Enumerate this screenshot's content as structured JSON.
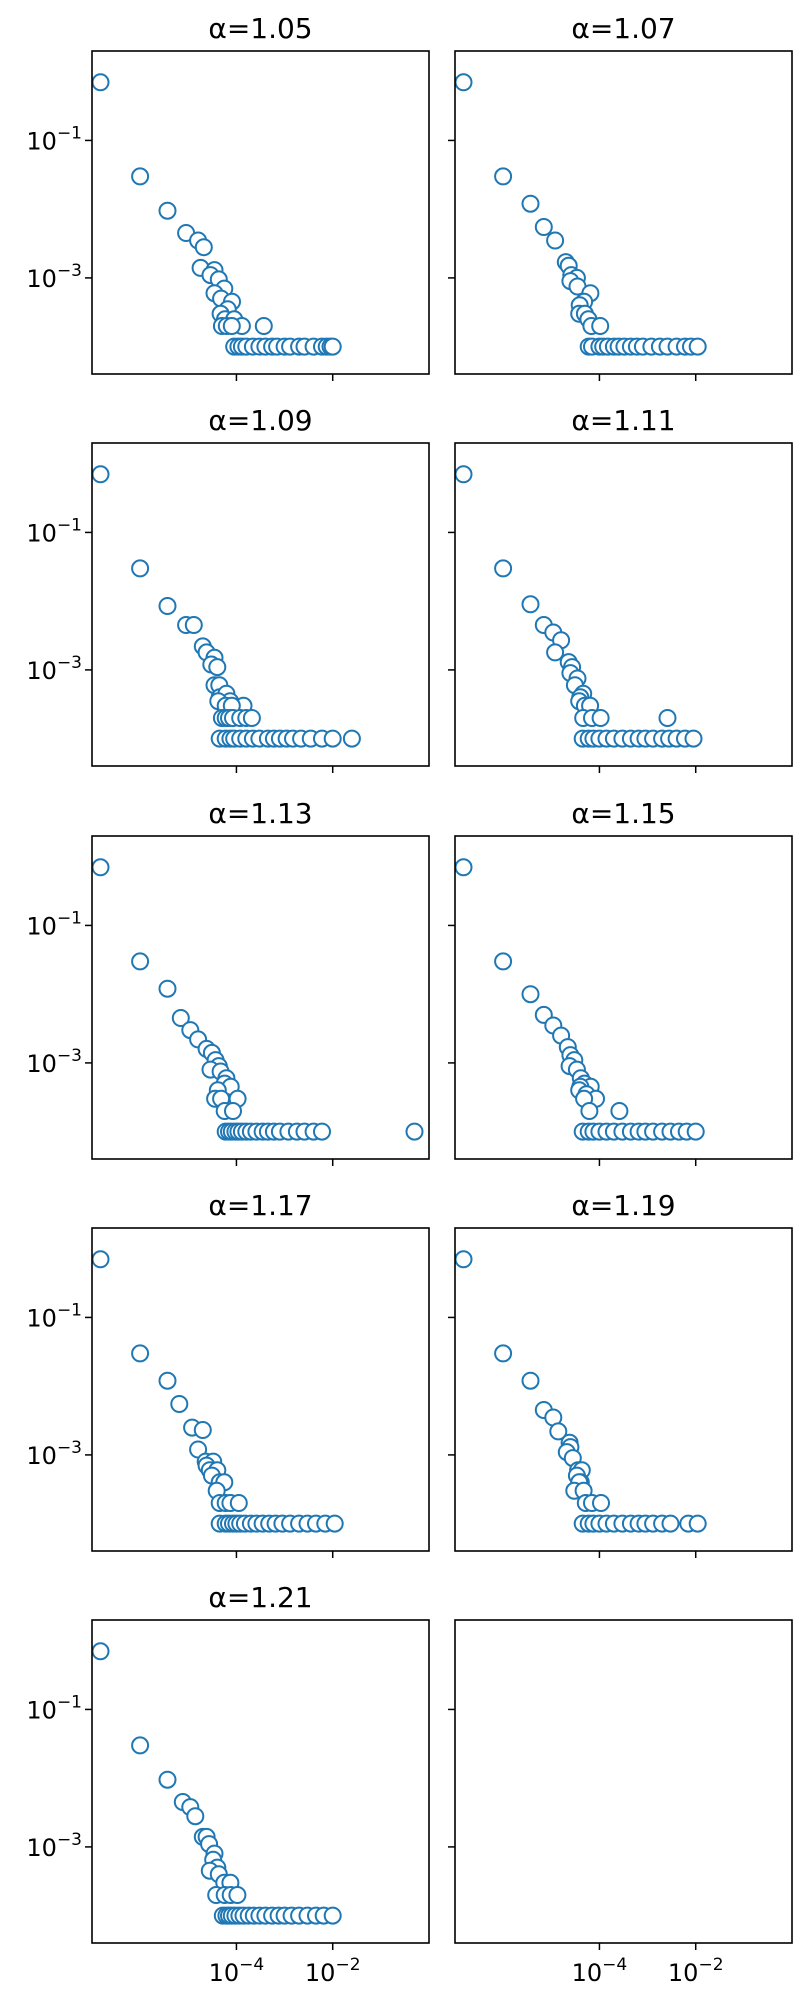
{
  "chart_data": [
    {
      "type": "scatter",
      "title": "α=1.05",
      "x_scale": "log",
      "y_scale": "log",
      "xlim": [
        1e-07,
        1
      ],
      "ylim": [
        4e-05,
        2
      ],
      "x": [
        1.5e-07,
        1e-06,
        3.7e-06,
        9e-06,
        1.6e-05,
        2.1e-05,
        1.8e-05,
        3.5e-05,
        2.9e-05,
        4.3e-05,
        5.6e-05,
        3.5e-05,
        4.8e-05,
        8.1e-05,
        6.6e-05,
        0.00037,
        4.7e-05,
        5.8e-05,
        9e-05,
        0.00013,
        5e-05,
        6.3e-05,
        8e-05,
        9e-05,
        0.00011,
        0.00013,
        0.00016,
        0.00022,
        0.0003,
        0.0004,
        0.00055,
        0.0007,
        0.001,
        0.0013,
        0.002,
        0.0026,
        0.004,
        0.006,
        0.0075,
        0.009,
        0.01
      ],
      "y": [
        0.7,
        0.03,
        0.0095,
        0.0045,
        0.0035,
        0.0028,
        0.0014,
        0.0013,
        0.0011,
        0.00095,
        0.0007,
        0.0006,
        0.0005,
        0.00045,
        0.00035,
        0.0002,
        0.0003,
        0.00025,
        0.00025,
        0.0002,
        0.0002,
        0.0002,
        0.0002,
        0.0001,
        0.0001,
        0.0001,
        0.0001,
        0.0001,
        0.0001,
        0.0001,
        0.0001,
        0.0001,
        0.0001,
        0.0001,
        0.0001,
        0.0001,
        0.0001,
        0.0001,
        0.0001,
        0.0001,
        0.0001
      ]
    },
    {
      "type": "scatter",
      "title": "α=1.07",
      "x_scale": "log",
      "y_scale": "log",
      "xlim": [
        1e-07,
        1
      ],
      "ylim": [
        4e-05,
        2
      ],
      "x": [
        1.5e-07,
        1e-06,
        3.7e-06,
        7e-06,
        1.2e-05,
        2e-05,
        2.3e-05,
        2.6e-05,
        3.4e-05,
        2.5e-05,
        3.5e-05,
        6.5e-05,
        4.8e-05,
        3.9e-05,
        3.8e-05,
        5e-05,
        5.9e-05,
        6.8e-05,
        0.000104,
        6e-05,
        7e-05,
        0.0001,
        0.00012,
        0.00015,
        0.0002,
        0.00025,
        0.00033,
        0.00045,
        0.0006,
        0.0008,
        0.0012,
        0.0018,
        0.0026,
        0.004,
        0.006,
        0.008,
        0.011
      ],
      "y": [
        0.7,
        0.03,
        0.012,
        0.0055,
        0.0035,
        0.0017,
        0.0015,
        0.0011,
        0.001,
        0.0009,
        0.00075,
        0.0006,
        0.00045,
        0.0004,
        0.0003,
        0.0003,
        0.00025,
        0.0002,
        0.0002,
        0.0001,
        0.0001,
        0.0001,
        0.0001,
        0.0001,
        0.0001,
        0.0001,
        0.0001,
        0.0001,
        0.0001,
        0.0001,
        0.0001,
        0.0001,
        0.0001,
        0.0001,
        0.0001,
        0.0001,
        0.0001
      ]
    },
    {
      "type": "scatter",
      "title": "α=1.09",
      "x_scale": "log",
      "y_scale": "log",
      "xlim": [
        1e-07,
        1
      ],
      "ylim": [
        4e-05,
        2
      ],
      "x": [
        1.5e-07,
        1e-06,
        3.7e-06,
        9e-06,
        1.3e-05,
        2e-05,
        2.4e-05,
        3.5e-05,
        3e-05,
        4e-05,
        3.5e-05,
        4.4e-05,
        4.5e-05,
        6.2e-05,
        7.4e-05,
        4.2e-05,
        0.00014,
        6e-05,
        8e-05,
        5e-05,
        6e-05,
        7e-05,
        8.5e-05,
        0.00012,
        0.00016,
        0.00021,
        4.5e-05,
        6e-05,
        7.5e-05,
        9e-05,
        0.00012,
        0.00016,
        0.00022,
        0.0003,
        0.00045,
        0.0006,
        0.0008,
        0.0011,
        0.0015,
        0.0022,
        0.0035,
        0.006,
        0.01,
        0.025
      ],
      "y": [
        0.7,
        0.03,
        0.0085,
        0.0045,
        0.0045,
        0.0022,
        0.0018,
        0.0015,
        0.0012,
        0.0011,
        0.0006,
        0.0006,
        0.0004,
        0.00045,
        0.00035,
        0.00035,
        0.0003,
        0.0003,
        0.0003,
        0.0002,
        0.0002,
        0.0002,
        0.0002,
        0.0002,
        0.0002,
        0.0002,
        0.0001,
        0.0001,
        0.0001,
        0.0001,
        0.0001,
        0.0001,
        0.0001,
        0.0001,
        0.0001,
        0.0001,
        0.0001,
        0.0001,
        0.0001,
        0.0001,
        0.0001,
        0.0001,
        0.0001,
        0.0001
      ]
    },
    {
      "type": "scatter",
      "title": "α=1.11",
      "x_scale": "log",
      "y_scale": "log",
      "xlim": [
        1e-07,
        1
      ],
      "ylim": [
        4e-05,
        2
      ],
      "x": [
        1.5e-07,
        1e-06,
        3.7e-06,
        7e-06,
        1.1e-05,
        1.6e-05,
        1.2e-05,
        2.3e-05,
        2.7e-05,
        2.5e-05,
        3.5e-05,
        3.1e-05,
        4.6e-05,
        4e-05,
        3.8e-05,
        5e-05,
        6.4e-05,
        4.6e-05,
        7e-05,
        0.000106,
        0.0026,
        4.5e-05,
        6e-05,
        7.5e-05,
        0.0001,
        0.00014,
        0.0002,
        0.0003,
        0.00045,
        0.00065,
        0.0009,
        0.0013,
        0.002,
        0.0028,
        0.004,
        0.006,
        0.009
      ],
      "y": [
        0.7,
        0.03,
        0.009,
        0.0045,
        0.0035,
        0.0027,
        0.0018,
        0.0013,
        0.0011,
        0.0009,
        0.00075,
        0.0006,
        0.00045,
        0.0004,
        0.00035,
        0.0003,
        0.0003,
        0.0002,
        0.0002,
        0.0002,
        0.0002,
        0.0001,
        0.0001,
        0.0001,
        0.0001,
        0.0001,
        0.0001,
        0.0001,
        0.0001,
        0.0001,
        0.0001,
        0.0001,
        0.0001,
        0.0001,
        0.0001,
        0.0001,
        0.0001
      ]
    },
    {
      "type": "scatter",
      "title": "α=1.13",
      "x_scale": "log",
      "y_scale": "log",
      "xlim": [
        1e-07,
        1
      ],
      "ylim": [
        4e-05,
        2
      ],
      "x": [
        1.5e-07,
        1e-06,
        3.7e-06,
        7e-06,
        1.1e-05,
        1.6e-05,
        2.4e-05,
        3.1e-05,
        3.7e-05,
        4.3e-05,
        2.9e-05,
        4.7e-05,
        6.2e-05,
        5.7e-05,
        7.6e-05,
        4.1e-05,
        3.6e-05,
        4.8e-05,
        0.000106,
        5.7e-05,
        8.5e-05,
        6e-05,
        7e-05,
        8e-05,
        9.5e-05,
        0.00011,
        0.00013,
        0.00016,
        0.0002,
        0.00026,
        0.00035,
        0.00045,
        0.0006,
        0.0008,
        0.0012,
        0.0018,
        0.0026,
        0.004,
        0.006,
        0.5
      ],
      "y": [
        0.7,
        0.03,
        0.012,
        0.0045,
        0.003,
        0.0022,
        0.0016,
        0.0014,
        0.0011,
        0.0009,
        0.0008,
        0.00075,
        0.0006,
        0.0005,
        0.00045,
        0.0004,
        0.0003,
        0.0003,
        0.0003,
        0.0002,
        0.0002,
        0.0001,
        0.0001,
        0.0001,
        0.0001,
        0.0001,
        0.0001,
        0.0001,
        0.0001,
        0.0001,
        0.0001,
        0.0001,
        0.0001,
        0.0001,
        0.0001,
        0.0001,
        0.0001,
        0.0001,
        0.0001,
        0.0001
      ]
    },
    {
      "type": "scatter",
      "title": "α=1.15",
      "x_scale": "log",
      "y_scale": "log",
      "xlim": [
        1e-07,
        1
      ],
      "ylim": [
        4e-05,
        2
      ],
      "x": [
        1.5e-07,
        1e-06,
        3.7e-06,
        7e-06,
        1.1e-05,
        1.6e-05,
        2.2e-05,
        2.5e-05,
        3e-05,
        2.4e-05,
        3.4e-05,
        4.1e-05,
        4.9e-05,
        6.6e-05,
        4e-05,
        3.8e-05,
        5.4e-05,
        8.5e-05,
        4.8e-05,
        0.00026,
        6.2e-05,
        4.5e-05,
        6e-05,
        7.5e-05,
        0.0001,
        0.00014,
        0.0002,
        0.0003,
        0.00045,
        0.00065,
        0.0009,
        0.0013,
        0.002,
        0.003,
        0.0045,
        0.0065,
        0.01
      ],
      "y": [
        0.7,
        0.03,
        0.01,
        0.005,
        0.0035,
        0.0025,
        0.0017,
        0.0013,
        0.0011,
        0.0009,
        0.0008,
        0.0006,
        0.0005,
        0.00045,
        0.00045,
        0.0004,
        0.00035,
        0.0003,
        0.0003,
        0.0002,
        0.0002,
        0.0001,
        0.0001,
        0.0001,
        0.0001,
        0.0001,
        0.0001,
        0.0001,
        0.0001,
        0.0001,
        0.0001,
        0.0001,
        0.0001,
        0.0001,
        0.0001,
        0.0001,
        0.0001
      ]
    },
    {
      "type": "scatter",
      "title": "α=1.17",
      "x_scale": "log",
      "y_scale": "log",
      "xlim": [
        1e-07,
        1
      ],
      "ylim": [
        4e-05,
        2
      ],
      "x": [
        1.5e-07,
        1e-06,
        3.7e-06,
        6.5e-06,
        1.2e-05,
        2e-05,
        1.6e-05,
        2.3e-05,
        3.3e-05,
        2.4e-05,
        2.8e-05,
        4e-05,
        3.1e-05,
        4.5e-05,
        5.6e-05,
        3.9e-05,
        4.5e-05,
        6e-05,
        7.5e-05,
        0.000112,
        4.5e-05,
        6e-05,
        7e-05,
        8.5e-05,
        0.0001,
        0.00012,
        0.00015,
        0.0002,
        0.00026,
        0.00035,
        0.00048,
        0.00065,
        0.0009,
        0.0013,
        0.002,
        0.003,
        0.0045,
        0.007,
        0.011
      ],
      "y": [
        0.7,
        0.03,
        0.012,
        0.0055,
        0.0025,
        0.0023,
        0.0012,
        0.0008,
        0.0008,
        0.0007,
        0.0006,
        0.0006,
        0.0005,
        0.0004,
        0.0004,
        0.0003,
        0.0002,
        0.0002,
        0.0002,
        0.0002,
        0.0001,
        0.0001,
        0.0001,
        0.0001,
        0.0001,
        0.0001,
        0.0001,
        0.0001,
        0.0001,
        0.0001,
        0.0001,
        0.0001,
        0.0001,
        0.0001,
        0.0001,
        0.0001,
        0.0001,
        0.0001,
        0.0001
      ]
    },
    {
      "type": "scatter",
      "title": "α=1.19",
      "x_scale": "log",
      "y_scale": "log",
      "xlim": [
        1e-07,
        1
      ],
      "ylim": [
        4e-05,
        2
      ],
      "x": [
        1.5e-07,
        1e-06,
        3.7e-06,
        7e-06,
        1.1e-05,
        1.4e-05,
        2.4e-05,
        2.5e-05,
        2.1e-05,
        2.8e-05,
        3.6e-05,
        4.3e-05,
        3.4e-05,
        4.1e-05,
        3.8e-05,
        3e-05,
        4.7e-05,
        5.2e-05,
        7e-05,
        0.000108,
        4.5e-05,
        6e-05,
        7.5e-05,
        0.0001,
        0.00014,
        0.0002,
        0.0003,
        0.00045,
        0.00065,
        0.0009,
        0.0013,
        0.002,
        0.003,
        0.007,
        0.011
      ],
      "y": [
        0.7,
        0.03,
        0.012,
        0.0045,
        0.0035,
        0.0022,
        0.0015,
        0.0013,
        0.0011,
        0.0009,
        0.0006,
        0.0006,
        0.0005,
        0.0004,
        0.0004,
        0.0003,
        0.0003,
        0.0002,
        0.0002,
        0.0002,
        0.0001,
        0.0001,
        0.0001,
        0.0001,
        0.0001,
        0.0001,
        0.0001,
        0.0001,
        0.0001,
        0.0001,
        0.0001,
        0.0001,
        0.0001,
        0.0001,
        0.0001
      ]
    },
    {
      "type": "scatter",
      "title": "α=1.21",
      "x_scale": "log",
      "y_scale": "log",
      "xlim": [
        1e-07,
        1
      ],
      "ylim": [
        4e-05,
        2
      ],
      "x": [
        1.5e-07,
        1e-06,
        3.7e-06,
        7.7e-06,
        1.1e-05,
        1.4e-05,
        2e-05,
        2.4e-05,
        2.7e-05,
        3.5e-05,
        3.3e-05,
        4e-05,
        2.8e-05,
        4.3e-05,
        5.6e-05,
        7.5e-05,
        3.8e-05,
        5.7e-05,
        7.6e-05,
        0.000105,
        5.2e-05,
        6.2e-05,
        7e-05,
        8e-05,
        9.5e-05,
        0.000115,
        0.00014,
        0.00018,
        0.00023,
        0.0003,
        0.0004,
        0.00055,
        0.00075,
        0.001,
        0.0014,
        0.002,
        0.003,
        0.0045,
        0.0065,
        0.01
      ],
      "y": [
        0.7,
        0.03,
        0.0095,
        0.0045,
        0.0038,
        0.0028,
        0.0014,
        0.0014,
        0.0011,
        0.0008,
        0.00065,
        0.0005,
        0.00045,
        0.0004,
        0.0003,
        0.0003,
        0.0002,
        0.0002,
        0.0002,
        0.0002,
        0.0001,
        0.0001,
        0.0001,
        0.0001,
        0.0001,
        0.0001,
        0.0001,
        0.0001,
        0.0001,
        0.0001,
        0.0001,
        0.0001,
        0.0001,
        0.0001,
        0.0001,
        0.0001,
        0.0001,
        0.0001,
        0.0001,
        0.0001
      ]
    },
    {
      "type": "scatter",
      "title": "",
      "x_scale": "log",
      "y_scale": "log",
      "xlim": [
        1e-07,
        1
      ],
      "ylim": [
        4e-05,
        2
      ],
      "x": [],
      "y": []
    }
  ],
  "axes": {
    "y_tick_labels": [
      {
        "base": "10",
        "exp": "−1",
        "value": 0.1
      },
      {
        "base": "10",
        "exp": "−3",
        "value": 0.001
      }
    ],
    "x_tick_labels": [
      {
        "base": "10",
        "exp": "−4",
        "value": 0.0001
      },
      {
        "base": "10",
        "exp": "−2",
        "value": 0.01
      }
    ],
    "grid": false
  },
  "colors": {
    "marker_edge": "#1f77b4",
    "marker_face": "#ffffff",
    "frame": "#000000"
  }
}
